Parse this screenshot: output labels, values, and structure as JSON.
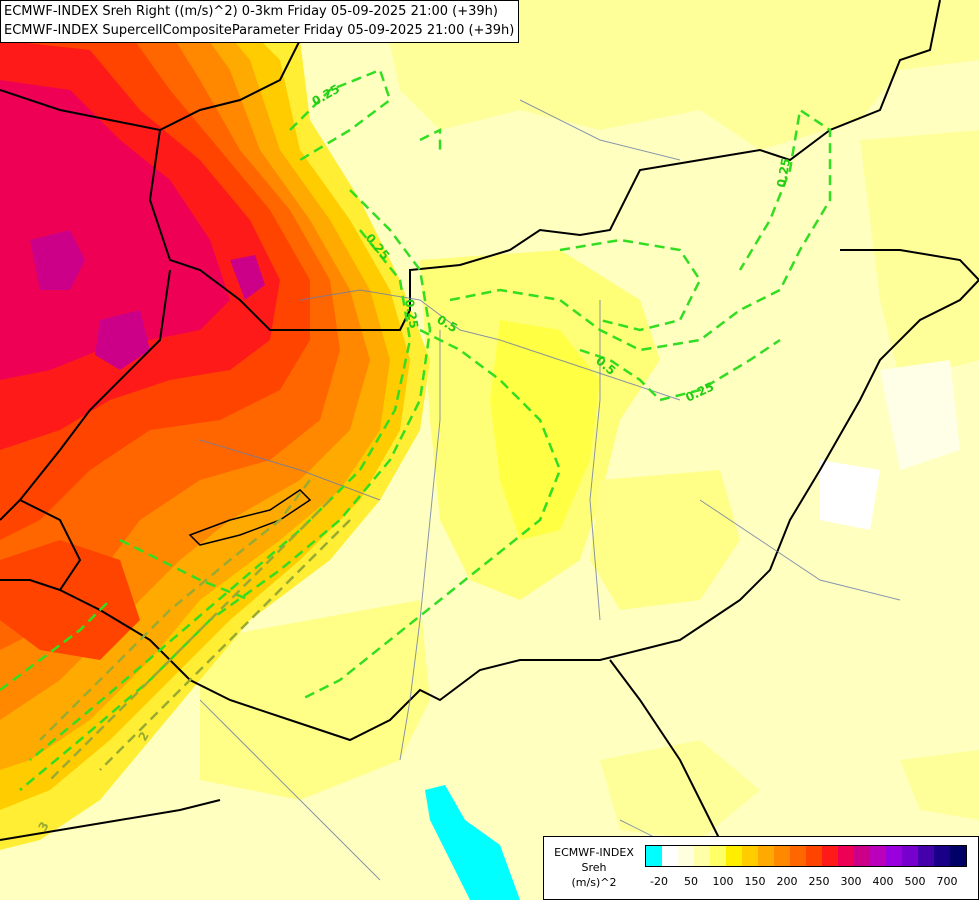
{
  "title": {
    "line1": "ECMWF-INDEX Sreh Right ((m/s)^2) 0-3km Friday 05-09-2025 21:00 (+39h)",
    "line2": "ECMWF-INDEX SupercellCompositeParameter Friday 05-09-2025 21:00 (+39h)"
  },
  "contour_labels": [
    "0.25",
    "0.25",
    "0.25",
    "0.25",
    "0.5",
    "0.5",
    "0.25",
    "2",
    "3"
  ],
  "legend": {
    "label_lines": [
      "ECMWF-INDEX",
      "Sreh",
      "(m/s)^2"
    ],
    "colors": [
      "#00ffff",
      "#ffffff",
      "#ffffe0",
      "#ffffa8",
      "#ffff66",
      "#ffee00",
      "#ffcc00",
      "#ffaa00",
      "#ff8800",
      "#ff6600",
      "#ff4400",
      "#ff1a1a",
      "#ee0055",
      "#cc0088",
      "#bb00bb",
      "#9900dd",
      "#7700cc",
      "#4400aa",
      "#1a0088",
      "#000066"
    ],
    "ticks": [
      "-20",
      "50",
      "100",
      "150",
      "200",
      "250",
      "300",
      "400",
      "500",
      "700"
    ]
  }
}
